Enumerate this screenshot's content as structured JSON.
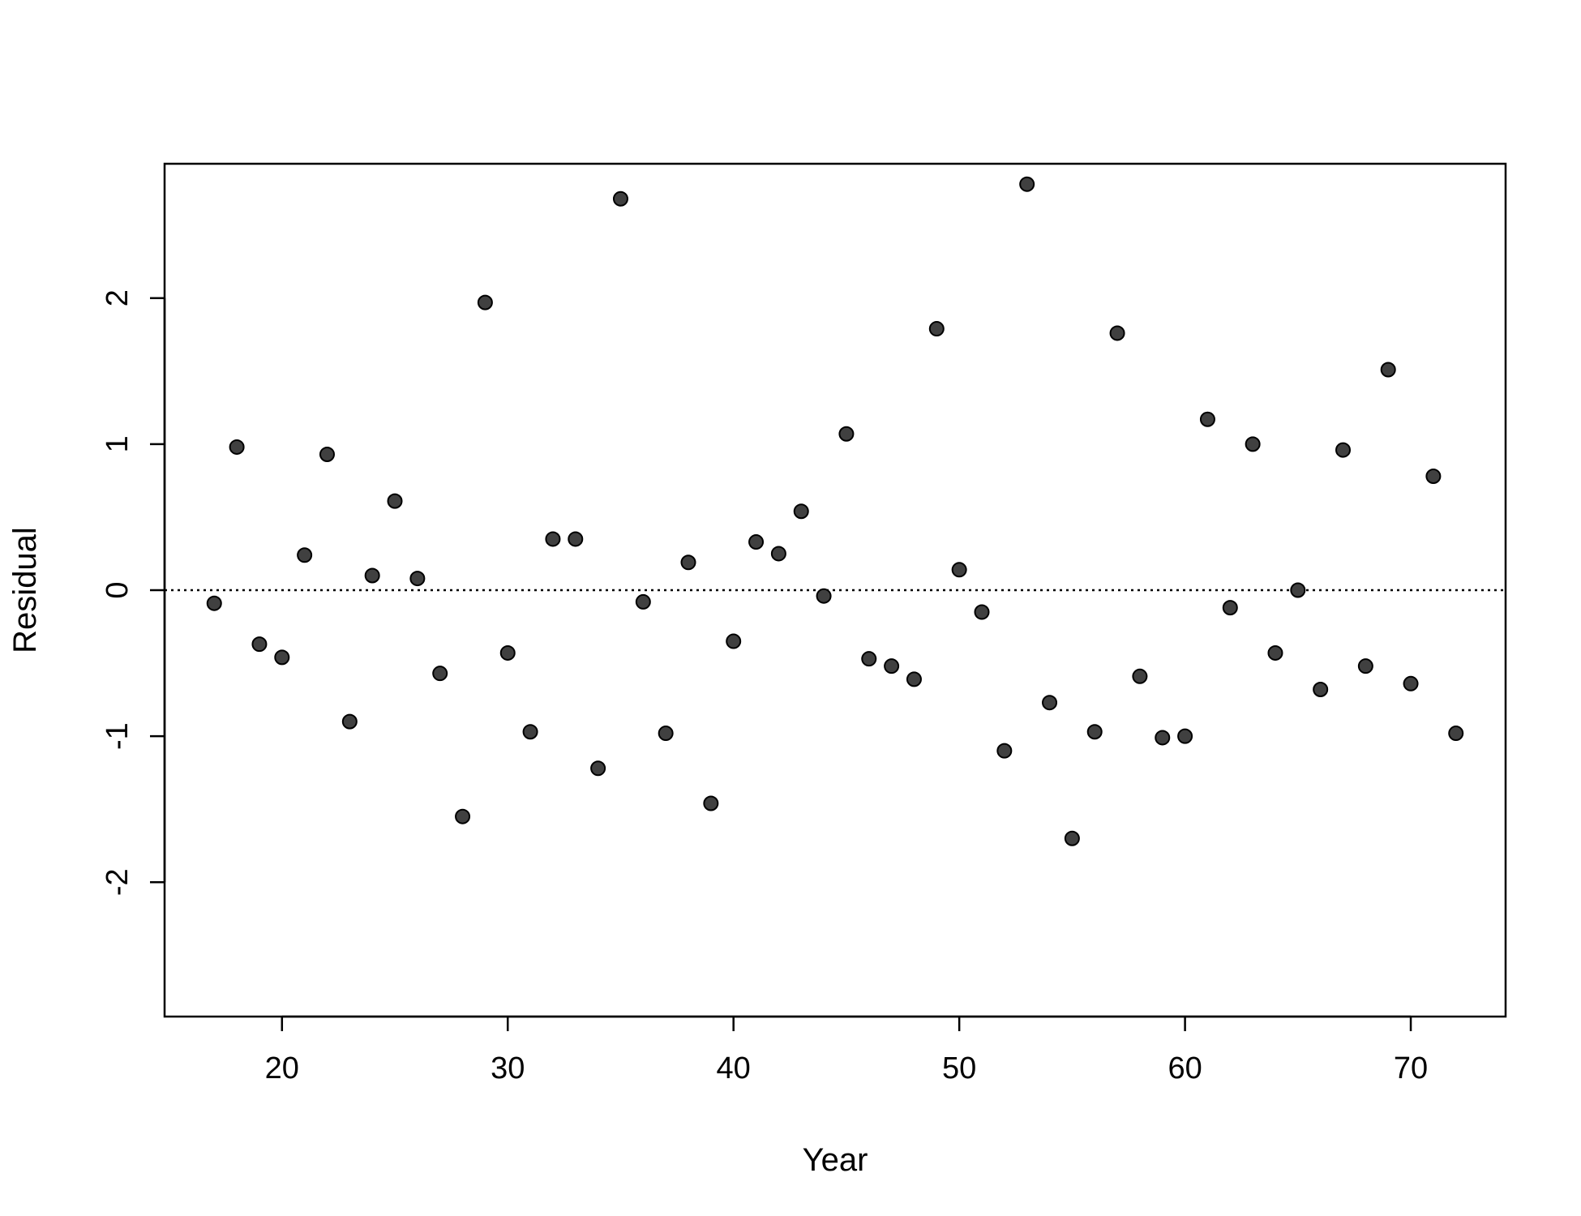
{
  "chart_data": {
    "type": "scatter",
    "title": "",
    "xlabel": "Year",
    "ylabel": "Residual",
    "xlim": [
      14.8,
      74.2
    ],
    "ylim": [
      -2.92,
      2.92
    ],
    "xticks": [
      20,
      30,
      40,
      50,
      60,
      70
    ],
    "xtick_labels": [
      "20",
      "30",
      "40",
      "50",
      "60",
      "70"
    ],
    "yticks": [
      -2,
      -1,
      0,
      1,
      2
    ],
    "ytick_labels": [
      "-2",
      "-1",
      "0",
      "1",
      "2"
    ],
    "reference_line": {
      "y": 0,
      "style": "dotted"
    },
    "grid": false,
    "legend": "none",
    "marker_color": "#404040",
    "series": [
      {
        "x": [
          17,
          18,
          19,
          20,
          21,
          22,
          23,
          24,
          25,
          26,
          27,
          28,
          29,
          30,
          31,
          32,
          33,
          34,
          35,
          36,
          37,
          38,
          39,
          40,
          41,
          42,
          43,
          44,
          45,
          46,
          47,
          48,
          49,
          50,
          51,
          52,
          53,
          54,
          55,
          56,
          57,
          58,
          59,
          60,
          61,
          62,
          63,
          64,
          65,
          66,
          67,
          68,
          69,
          70,
          71,
          72
        ],
        "y": [
          -0.09,
          0.98,
          -0.37,
          -0.46,
          0.24,
          0.93,
          -0.9,
          0.1,
          0.61,
          0.08,
          -0.57,
          -1.55,
          1.97,
          -0.43,
          -0.97,
          0.35,
          0.35,
          -1.22,
          2.68,
          -0.08,
          -0.98,
          0.19,
          -1.46,
          -0.35,
          0.33,
          0.25,
          0.54,
          -0.04,
          1.07,
          -0.47,
          -0.52,
          -0.61,
          1.79,
          0.14,
          -0.15,
          -1.1,
          2.78,
          -0.77,
          -1.7,
          -0.97,
          1.76,
          -0.59,
          -1.01,
          -1.0,
          1.17,
          -0.12,
          1.0,
          -0.43,
          0.0,
          -0.68,
          0.96,
          -0.52,
          1.51,
          -0.64,
          0.78,
          -0.98
        ]
      }
    ]
  }
}
